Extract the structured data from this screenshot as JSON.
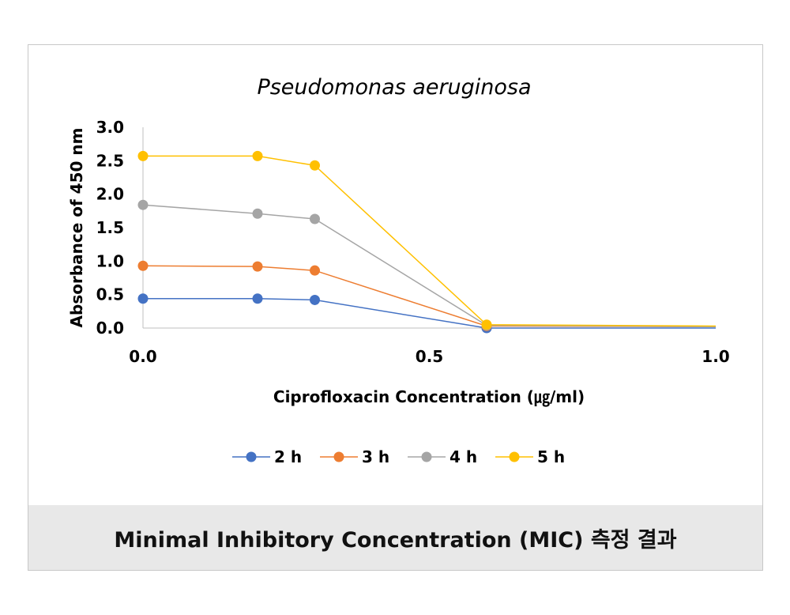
{
  "chart_data": {
    "type": "line",
    "title": "Pseudomonas aeruginosa",
    "xlabel": "Ciprofloxacin Concentration (㎍/ml)",
    "ylabel": "Absorbance of 450 nm",
    "xlim": [
      0.0,
      1.0
    ],
    "ylim": [
      0.0,
      3.0
    ],
    "x_ticks": [
      "0.0",
      "0.5",
      "1.0"
    ],
    "y_ticks": [
      "0.0",
      "0.5",
      "1.0",
      "1.5",
      "2.0",
      "2.5",
      "3.0"
    ],
    "grid": false,
    "legend_position": "bottom",
    "x": [
      0.0,
      0.2,
      0.3,
      0.6,
      1.0
    ],
    "series": [
      {
        "name": "2 h",
        "color": "#4472C4",
        "values": [
          0.44,
          0.44,
          0.42,
          0.0,
          0.0
        ],
        "markers": [
          true,
          true,
          true,
          true,
          false
        ]
      },
      {
        "name": "3 h",
        "color": "#ED7D31",
        "values": [
          0.93,
          0.92,
          0.86,
          0.03,
          0.02
        ],
        "markers": [
          true,
          true,
          true,
          true,
          false
        ]
      },
      {
        "name": "4 h",
        "color": "#A5A5A5",
        "values": [
          1.84,
          1.71,
          1.63,
          0.04,
          0.02
        ],
        "markers": [
          true,
          true,
          true,
          true,
          false
        ]
      },
      {
        "name": "5 h",
        "color": "#FFC000",
        "values": [
          2.57,
          2.57,
          2.43,
          0.05,
          0.03
        ],
        "markers": [
          true,
          true,
          true,
          true,
          false
        ]
      }
    ]
  },
  "caption": "Minimal Inhibitory Concentration (MIC) 측정 결과"
}
